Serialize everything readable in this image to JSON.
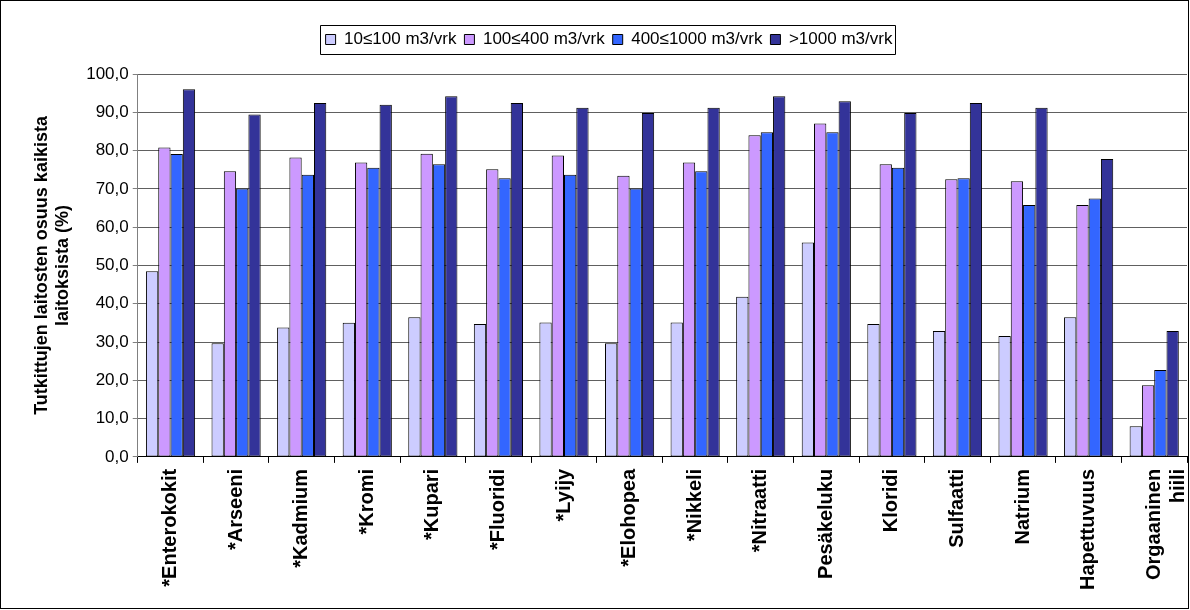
{
  "chart_data": {
    "type": "bar",
    "categories": [
      "*Enterokokit",
      "*Arseeni",
      "*Kadmium",
      "*Kromi",
      "*Kupari",
      "*Fluoridi",
      "*Lyijy",
      "*Elohopea",
      "*Nikkeli",
      "*Nitraatti",
      "Pesäkeluku",
      "Kloridi",
      "Sulfaatti",
      "Natrium",
      "Hapettuvuus",
      "Orgaaninen hiili"
    ],
    "series": [
      {
        "name": "10≤100 m3/vrk",
        "color": "#ccccff",
        "values": [
          48.5,
          29.7,
          33.8,
          35.0,
          36.5,
          34.7,
          35.1,
          29.7,
          35.1,
          41.8,
          56.0,
          34.7,
          32.9,
          31.6,
          36.5,
          8.0
        ]
      },
      {
        "name": "100≤400 m3/vrk",
        "color": "#cc99ff",
        "values": [
          80.8,
          74.6,
          78.2,
          76.9,
          79.2,
          75.1,
          78.7,
          73.4,
          76.9,
          84.0,
          87.1,
          76.4,
          72.5,
          72.0,
          65.8,
          18.7
        ]
      },
      {
        "name": "400≤1000 m3/vrk",
        "color": "#3366ff",
        "values": [
          79.1,
          70.1,
          73.7,
          75.5,
          76.4,
          72.8,
          73.7,
          70.1,
          74.6,
          84.8,
          84.8,
          75.5,
          72.8,
          65.8,
          67.5,
          22.7
        ]
      },
      {
        "name": ">1000 m3/vrk",
        "color": "#333399",
        "values": [
          96.0,
          89.4,
          92.4,
          92.0,
          94.2,
          92.4,
          91.2,
          89.8,
          91.2,
          94.2,
          92.9,
          89.8,
          92.4,
          91.2,
          77.8,
          32.9
        ]
      }
    ],
    "ylabel": "Tutkittujen laitosten osuus kaikista laitoksista (%)",
    "ylim": [
      0,
      100
    ],
    "yticks": [
      {
        "value": 0,
        "label": "0,0"
      },
      {
        "value": 10,
        "label": "10,0"
      },
      {
        "value": 20,
        "label": "20,0"
      },
      {
        "value": 30,
        "label": "30,0"
      },
      {
        "value": 40,
        "label": "40,0"
      },
      {
        "value": 50,
        "label": "50,0"
      },
      {
        "value": 60,
        "label": "60,0"
      },
      {
        "value": 70,
        "label": "70,0"
      },
      {
        "value": 80,
        "label": "80,0"
      },
      {
        "value": 90,
        "label": "90,0"
      },
      {
        "value": 100,
        "label": "100,0"
      }
    ],
    "grid": "y",
    "legend": "top"
  }
}
